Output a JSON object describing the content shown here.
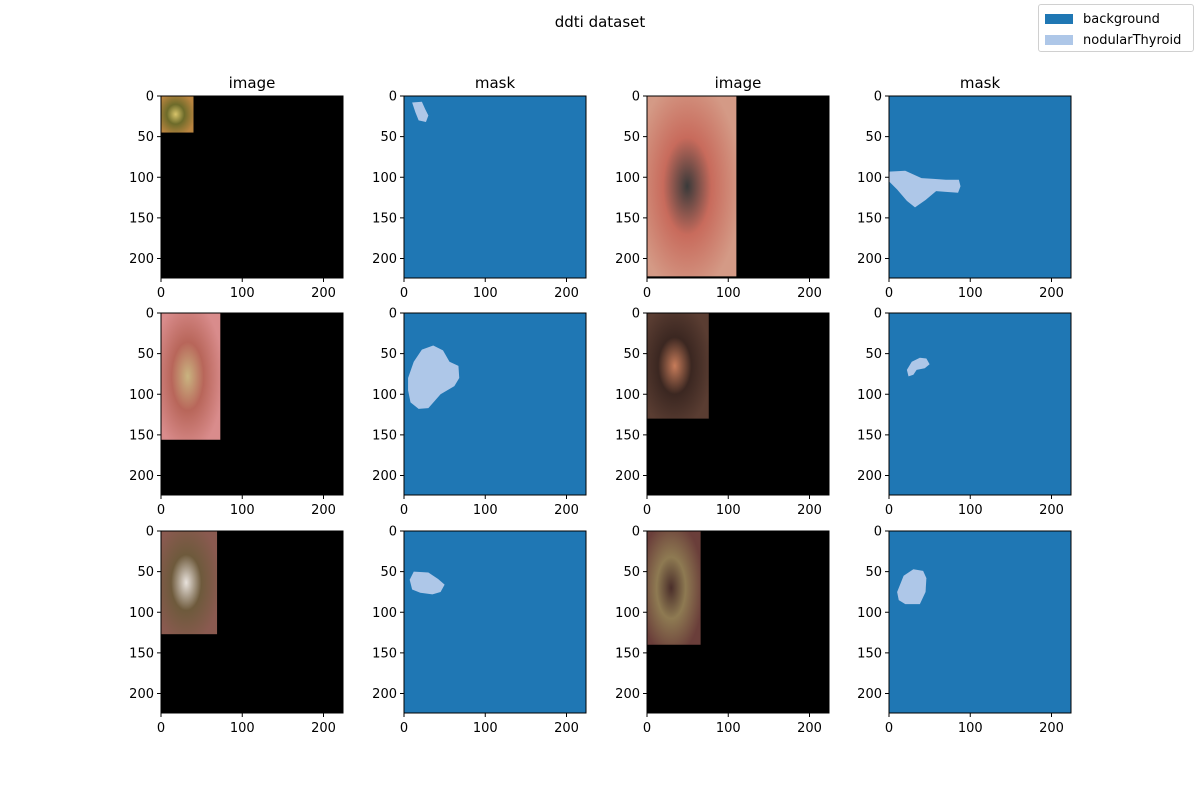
{
  "suptitle": "ddti dataset",
  "colors": {
    "background": "#1f77b4",
    "nodular": "#aec7e8",
    "image_bg": "#000000"
  },
  "legend": {
    "items": [
      {
        "label": "background",
        "color": "#1f77b4"
      },
      {
        "label": "nodularThyroid",
        "color": "#aec7e8"
      }
    ]
  },
  "column_titles": [
    "image",
    "mask",
    "image",
    "mask"
  ],
  "axes": {
    "x_ticks": [
      "0",
      "100",
      "200"
    ],
    "y_ticks": [
      "0",
      "50",
      "100",
      "150",
      "200"
    ]
  },
  "panels": [
    {
      "kind": "image",
      "photo": {
        "w": 40,
        "h": 45
      }
    },
    {
      "kind": "mask",
      "icon": "lesion-mask-blob"
    },
    {
      "kind": "image",
      "photo": {
        "w": 110,
        "h": 222
      }
    },
    {
      "kind": "mask",
      "icon": "lesion-mask-blob"
    },
    {
      "kind": "image",
      "photo": {
        "w": 73,
        "h": 156
      }
    },
    {
      "kind": "mask",
      "icon": "lesion-mask-blob"
    },
    {
      "kind": "image",
      "photo": {
        "w": 76,
        "h": 130
      }
    },
    {
      "kind": "mask",
      "icon": "lesion-mask-blob"
    },
    {
      "kind": "image",
      "photo": {
        "w": 69,
        "h": 127
      }
    },
    {
      "kind": "mask",
      "icon": "lesion-mask-blob"
    },
    {
      "kind": "image",
      "photo": {
        "w": 66,
        "h": 140
      }
    },
    {
      "kind": "mask",
      "icon": "lesion-mask-blob"
    }
  ]
}
